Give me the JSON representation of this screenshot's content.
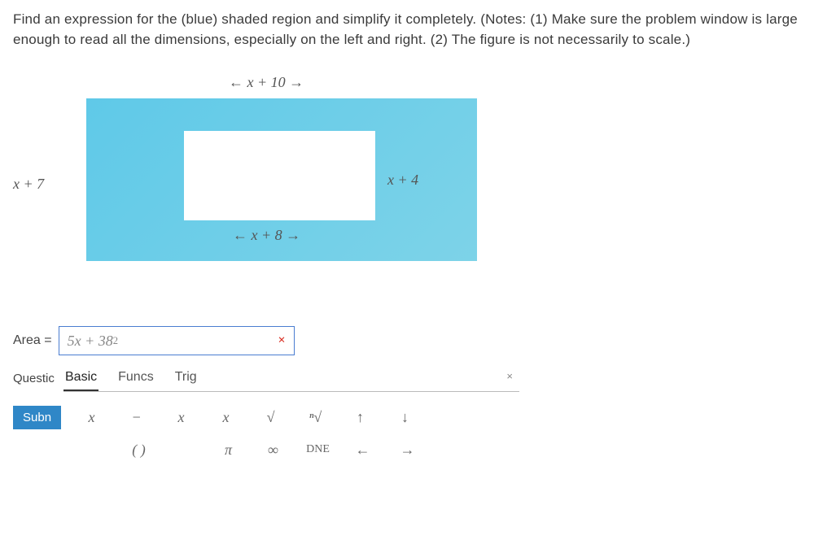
{
  "problem": {
    "text": "Find an expression for the (blue) shaded region and simplify it completely. (Notes: (1) Make sure the problem window is large enough to read all the dimensions, especially on the left and right. (2) The figure is not necessarily to scale.)"
  },
  "figure": {
    "outer_top": "x + 10",
    "outer_left": "x + 7",
    "inner_right": "x + 4",
    "inner_bottom": "x + 8",
    "outer_color": "#6ccce8",
    "inner_color": "#ffffff"
  },
  "answer": {
    "label": "Area =",
    "value_html": "5x + 38",
    "value_exp": "2",
    "wrong": "×"
  },
  "toolbar": {
    "questic": "Questic",
    "tabs": [
      "Basic",
      "Funcs",
      "Trig"
    ],
    "active_tab": 0,
    "close": "×",
    "submit": "Subn",
    "row1": [
      "x",
      "−",
      "x",
      "x",
      "√",
      "ⁿ√",
      "↑",
      "↓"
    ],
    "row2": [
      "",
      "( )",
      "",
      "π",
      "∞",
      "DNE",
      "←",
      "→"
    ]
  }
}
